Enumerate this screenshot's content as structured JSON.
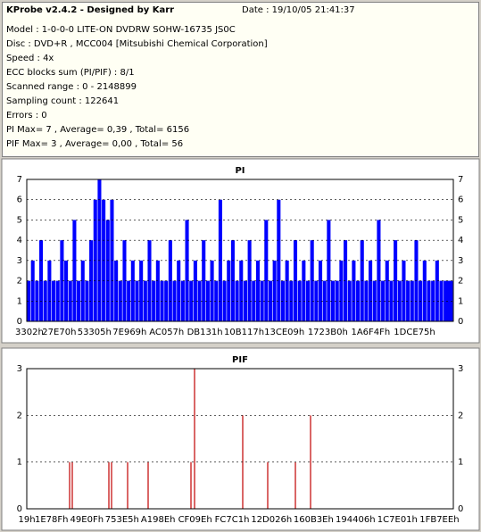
{
  "header": {
    "title": "KProbe v2.4.2 - Designed by Karr",
    "date": "Date : 19/10/05 21:41:37",
    "lines": [
      "Model : 1-0-0-0 LITE-ON DVDRW SOHW-16735 JS0C",
      "Disc : DVD+R , MCC004 [Mitsubishi Chemical Corporation]",
      "Speed : 4x",
      "ECC blocks sum (PI/PIF) : 8/1",
      "Scanned range : 0 - 2148899",
      "Sampling count : 122641",
      "Errors : 0",
      "PI Max= 7 , Average= 0,39 , Total= 6156",
      "PIF Max= 3 , Average= 0,00 , Total= 56"
    ]
  },
  "chart_data": [
    {
      "type": "bar",
      "title": "PI",
      "color": "#0000ff",
      "grid": true,
      "mirror_yticks": true,
      "xlim": [
        0,
        2148899
      ],
      "ylim": [
        0,
        7
      ],
      "yticks": [
        0,
        1,
        2,
        3,
        4,
        5,
        6,
        7
      ],
      "xticks": [
        {
          "value": 13058,
          "label": "3302h"
        },
        {
          "value": 163440,
          "label": "27E70h"
        },
        {
          "value": 340741,
          "label": "53305h"
        },
        {
          "value": 518505,
          "label": "7E969h"
        },
        {
          "value": 704599,
          "label": "AC057h"
        },
        {
          "value": 897329,
          "label": "DB131h"
        },
        {
          "value": 1094935,
          "label": "10B117h"
        },
        {
          "value": 1297929,
          "label": "13CE09h"
        },
        {
          "value": 1516464,
          "label": "1723B0h"
        },
        {
          "value": 1732431,
          "label": "1A6F4Fh"
        },
        {
          "value": 1953397,
          "label": "1DCE75h"
        }
      ],
      "x": [
        0,
        21000,
        42000,
        63000,
        84000,
        105000,
        126000,
        147000,
        168000,
        189000,
        210000,
        231000,
        252000,
        273000,
        294000,
        315000,
        336000,
        357000,
        378000,
        399000,
        420000,
        441000,
        462000,
        483000,
        504000,
        525000,
        546000,
        567000,
        588000,
        609000,
        630000,
        651000,
        672000,
        693000,
        714000,
        735000,
        756000,
        777000,
        798000,
        819000,
        840000,
        861000,
        882000,
        903000,
        924000,
        945000,
        966000,
        987000,
        1008000,
        1029000,
        1050000,
        1071000,
        1092000,
        1113000,
        1134000,
        1155000,
        1176000,
        1197000,
        1218000,
        1239000,
        1260000,
        1281000,
        1302000,
        1323000,
        1344000,
        1365000,
        1386000,
        1407000,
        1428000,
        1449000,
        1470000,
        1491000,
        1512000,
        1533000,
        1554000,
        1575000,
        1596000,
        1617000,
        1638000,
        1659000,
        1680000,
        1701000,
        1722000,
        1743000,
        1764000,
        1785000,
        1806000,
        1827000,
        1848000,
        1869000,
        1890000,
        1911000,
        1932000,
        1953000,
        1974000,
        1995000,
        2016000,
        2037000,
        2058000,
        2079000,
        2100000
      ],
      "values": [
        2,
        3,
        2,
        4,
        2,
        3,
        2,
        2,
        4,
        3,
        2,
        5,
        2,
        3,
        2,
        4,
        6,
        7,
        6,
        5,
        6,
        3,
        2,
        4,
        2,
        3,
        2,
        3,
        2,
        4,
        2,
        3,
        2,
        2,
        4,
        2,
        3,
        2,
        5,
        2,
        3,
        2,
        4,
        2,
        3,
        2,
        6,
        2,
        3,
        4,
        2,
        3,
        2,
        4,
        2,
        3,
        2,
        5,
        2,
        3,
        6,
        2,
        3,
        2,
        4,
        2,
        3,
        2,
        4,
        2,
        3,
        2,
        5,
        2,
        2,
        3,
        4,
        2,
        3,
        2,
        4,
        2,
        3,
        2,
        5,
        2,
        3,
        2,
        4,
        2,
        3,
        2,
        2,
        4,
        2,
        3,
        2,
        2,
        3,
        2,
        2
      ]
    },
    {
      "type": "stem",
      "title": "PIF",
      "color": "#c00000",
      "grid": true,
      "mirror_yticks": true,
      "xlim": [
        0,
        2148899
      ],
      "ylim": [
        0,
        3
      ],
      "yticks": [
        0,
        1,
        2,
        3
      ],
      "xticks": [
        {
          "value": 25,
          "label": "19h"
        },
        {
          "value": 124815,
          "label": "1E78Fh"
        },
        {
          "value": 302607,
          "label": "49E0Fh"
        },
        {
          "value": 480229,
          "label": "753E5h"
        },
        {
          "value": 661902,
          "label": "A198Eh"
        },
        {
          "value": 848030,
          "label": "CF09Eh"
        },
        {
          "value": 1034177,
          "label": "FC7C1h"
        },
        {
          "value": 1232934,
          "label": "12D026h"
        },
        {
          "value": 1444670,
          "label": "160B3Eh"
        },
        {
          "value": 1655814,
          "label": "194406h"
        },
        {
          "value": 1867265,
          "label": "1C7E01h"
        },
        {
          "value": 2078702,
          "label": "1FB7EEh"
        }
      ],
      "x": [
        215780,
        229267,
        413594,
        427081,
        508000,
        611400,
        827200,
        845200,
        1087900,
        1213800,
        1353200,
        1429600
      ],
      "values": [
        1,
        1,
        1,
        1,
        1,
        1,
        1,
        3,
        2,
        1,
        1,
        2
      ]
    }
  ]
}
